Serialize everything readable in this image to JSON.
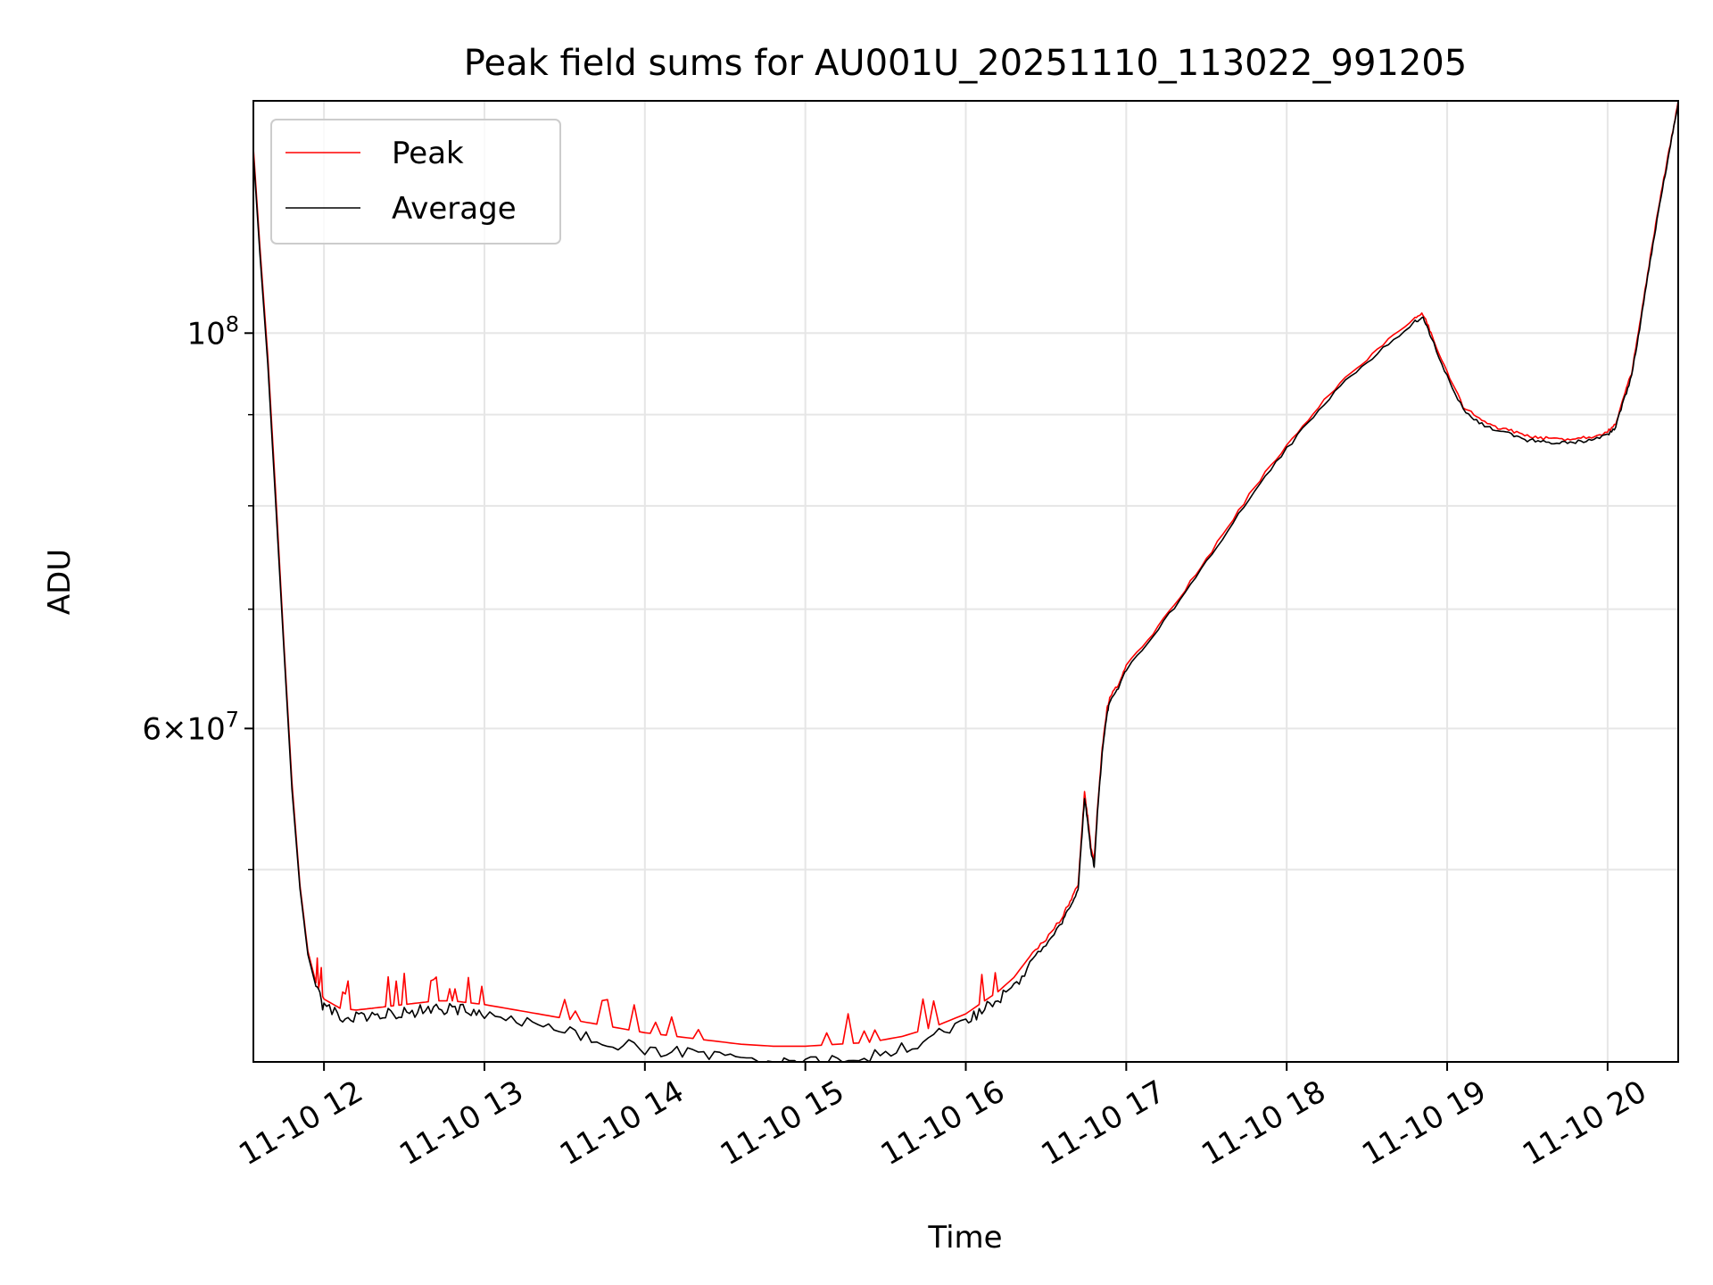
{
  "colors": {
    "background": "#ffffff",
    "grid": "#e6e6e6",
    "axes": "#000000",
    "peak": "#ff0000",
    "average": "#000000",
    "legend_border": "#cccccc"
  },
  "chart_data": {
    "type": "line",
    "title": "Peak field sums for AU001U_20251110_113022_991205",
    "xlabel": "Time",
    "ylabel": "ADU",
    "xlim": [
      11.56,
      20.44
    ],
    "ylim": [
      39000000,
      135000000
    ],
    "yscale": "log",
    "grid": true,
    "legend_position": "upper left",
    "x_ticks": [
      12,
      13,
      14,
      15,
      16,
      17,
      18,
      19,
      20
    ],
    "x_tick_labels": [
      "11-10 12",
      "11-10 13",
      "11-10 14",
      "11-10 15",
      "11-10 16",
      "11-10 17",
      "11-10 18",
      "11-10 19",
      "11-10 20"
    ],
    "y_major_ticks": [
      {
        "value": 100000000,
        "base": "10",
        "exp": "8",
        "mantissa": ""
      },
      {
        "value": 60000000,
        "base": "10",
        "exp": "7",
        "mantissa": "6×"
      }
    ],
    "y_minor_ticks": [
      50000000,
      70000000,
      80000000,
      90000000
    ],
    "series": [
      {
        "name": "Peak",
        "color": "#ff0000",
        "x": [
          11.56,
          11.6,
          11.65,
          11.7,
          11.75,
          11.8,
          11.85,
          11.9,
          11.95,
          12.0,
          12.1,
          12.2,
          12.3,
          12.4,
          12.5,
          12.6,
          12.7,
          12.8,
          12.9,
          13.0,
          13.2,
          13.4,
          13.6,
          13.8,
          14.0,
          14.2,
          14.4,
          14.6,
          14.8,
          15.0,
          15.2,
          15.4,
          15.6,
          15.8,
          16.0,
          16.1,
          16.2,
          16.3,
          16.4,
          16.5,
          16.6,
          16.65,
          16.7,
          16.72,
          16.74,
          16.76,
          16.78,
          16.8,
          16.82,
          16.85,
          16.88,
          16.9,
          16.95,
          17.0,
          17.2,
          17.4,
          17.6,
          17.8,
          18.0,
          18.2,
          18.4,
          18.6,
          18.8,
          18.85,
          18.9,
          19.0,
          19.1,
          19.2,
          19.3,
          19.4,
          19.5,
          19.6,
          19.7,
          19.8,
          19.9,
          20.0,
          20.05,
          20.1,
          20.15,
          20.2,
          20.25,
          20.3,
          20.35,
          20.4,
          20.44
        ],
        "values": [
          127000000,
          112000000,
          97000000,
          81000000,
          67000000,
          56000000,
          49000000,
          45000000,
          43200000,
          42300000,
          41800000,
          41700000,
          41800000,
          41900000,
          42000000,
          42100000,
          42200000,
          42200000,
          42100000,
          42000000,
          41700000,
          41400000,
          41100000,
          40800000,
          40500000,
          40300000,
          40100000,
          39900000,
          39800000,
          39800000,
          39900000,
          40000000,
          40300000,
          40800000,
          41500000,
          42100000,
          42700000,
          43500000,
          44700000,
          45700000,
          47000000,
          48000000,
          49000000,
          52000000,
          55200000,
          53500000,
          51500000,
          50500000,
          54000000,
          58500000,
          61500000,
          62500000,
          63500000,
          65000000,
          68500000,
          72500000,
          77000000,
          82000000,
          86500000,
          91000000,
          95000000,
          98500000,
          102000000,
          102500000,
          100000000,
          95000000,
          91000000,
          89500000,
          88500000,
          88200000,
          87500000,
          87300000,
          87200000,
          87300000,
          87500000,
          88000000,
          89000000,
          92000000,
          95000000,
          101000000,
          108000000,
          115000000,
          122000000,
          129000000,
          135000000
        ]
      },
      {
        "name": "Average",
        "color": "#000000",
        "x": [
          11.56,
          11.6,
          11.65,
          11.7,
          11.75,
          11.8,
          11.85,
          11.9,
          11.95,
          12.0,
          12.1,
          12.2,
          12.3,
          12.4,
          12.5,
          12.6,
          12.7,
          12.8,
          12.9,
          13.0,
          13.2,
          13.4,
          13.6,
          13.8,
          14.0,
          14.2,
          14.4,
          14.6,
          14.8,
          15.0,
          15.2,
          15.4,
          15.6,
          15.8,
          16.0,
          16.1,
          16.2,
          16.3,
          16.4,
          16.5,
          16.6,
          16.65,
          16.7,
          16.72,
          16.74,
          16.76,
          16.78,
          16.8,
          16.82,
          16.85,
          16.88,
          16.9,
          16.95,
          17.0,
          17.2,
          17.4,
          17.6,
          17.8,
          18.0,
          18.2,
          18.4,
          18.6,
          18.8,
          18.85,
          18.9,
          19.0,
          19.1,
          19.2,
          19.3,
          19.4,
          19.5,
          19.6,
          19.7,
          19.8,
          19.9,
          20.0,
          20.05,
          20.1,
          20.15,
          20.2,
          20.25,
          20.3,
          20.35,
          20.4,
          20.44
        ],
        "values": [
          126000000,
          111000000,
          96000000,
          80000000,
          66500000,
          55500000,
          48800000,
          44800000,
          43000000,
          42000000,
          41500000,
          41400000,
          41500000,
          41600000,
          41700000,
          41800000,
          41900000,
          41900000,
          41800000,
          41700000,
          41300000,
          40900000,
          40500000,
          40100000,
          39800000,
          39600000,
          39400000,
          39200000,
          39100000,
          39100000,
          39200000,
          39400000,
          39800000,
          40400000,
          41200000,
          41800000,
          42400000,
          43200000,
          44400000,
          45400000,
          46700000,
          47700000,
          48700000,
          51700000,
          54800000,
          53200000,
          51200000,
          50200000,
          53700000,
          58200000,
          61200000,
          62200000,
          63200000,
          64700000,
          68200000,
          72200000,
          76600000,
          81600000,
          86100000,
          90600000,
          94600000,
          98000000,
          101500000,
          102000000,
          99500000,
          94600000,
          90600000,
          89100000,
          88100000,
          87800000,
          87100000,
          86900000,
          86800000,
          86900000,
          87100000,
          87600000,
          88600000,
          91600000,
          94600000,
          100600000,
          107600000,
          114600000,
          121600000,
          128600000,
          134600000
        ]
      }
    ]
  }
}
